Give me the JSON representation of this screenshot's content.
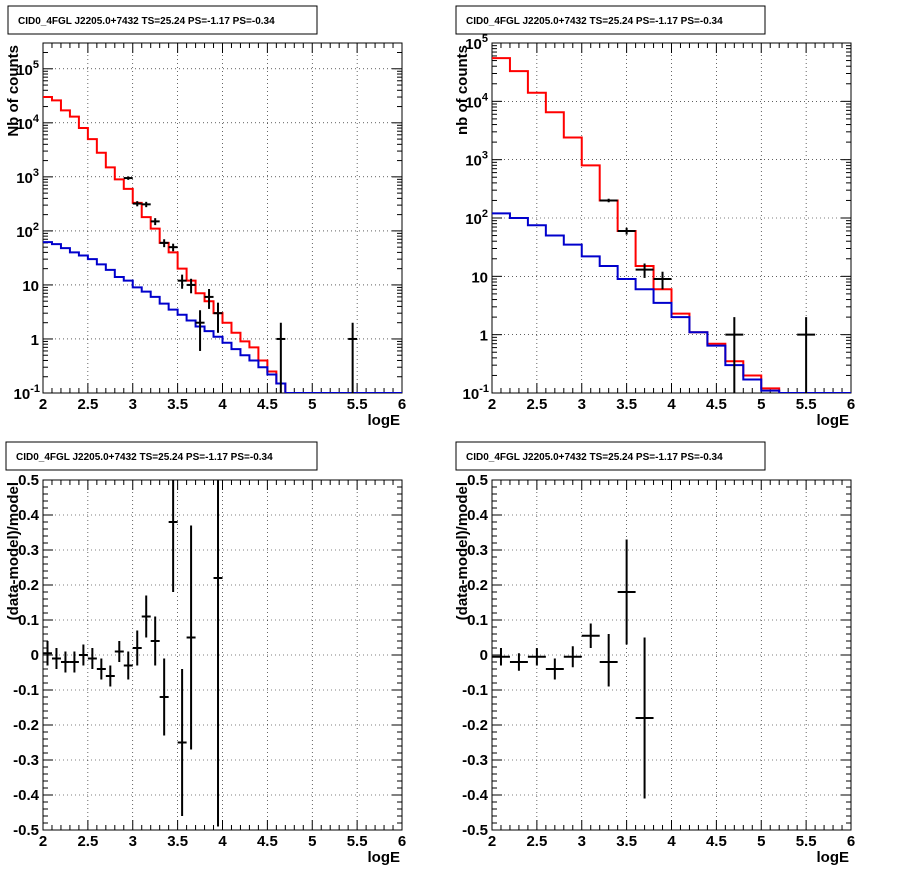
{
  "chart_data": [
    {
      "type": "line",
      "panel": "top-left",
      "title": "CID0_4FGL J2205.0+7432 TS=25.24 PS=-1.17 PS=-0.34",
      "xlabel": "logE",
      "ylabel": "Nb of counts",
      "xlim": [
        2,
        6
      ],
      "ylim": [
        0.1,
        300000
      ],
      "ylog": true,
      "grid": true,
      "xticks": [
        "2",
        "2.5",
        "3",
        "3.5",
        "4",
        "4.5",
        "5",
        "5.5",
        "6"
      ],
      "yticks": [
        {
          "value": 0.1,
          "label": "10",
          "exp": "-1"
        },
        {
          "value": 1,
          "label": "1",
          "exp": ""
        },
        {
          "value": 10,
          "label": "10",
          "exp": ""
        },
        {
          "value": 100,
          "label": "10",
          "exp": "2"
        },
        {
          "value": 1000,
          "label": "10",
          "exp": "3"
        },
        {
          "value": 10000,
          "label": "10",
          "exp": "4"
        },
        {
          "value": 100000,
          "label": "10",
          "exp": "5"
        }
      ],
      "bin_edges": [
        2.0,
        2.1,
        2.2,
        2.3,
        2.4,
        2.5,
        2.6,
        2.7,
        2.8,
        2.9,
        3.0,
        3.1,
        3.2,
        3.3,
        3.4,
        3.5,
        3.6,
        3.7,
        3.8,
        3.9,
        4.0,
        4.1,
        4.2,
        4.3,
        4.4,
        4.5,
        4.6,
        4.7,
        4.8,
        4.9,
        5.0,
        5.1,
        5.2,
        5.3,
        5.4,
        5.5,
        5.6,
        5.7,
        5.8,
        5.9,
        6.0
      ],
      "series": [
        {
          "name": "",
          "color": "#ff0000",
          "style": "step",
          "values": [
            30000,
            26000,
            17000,
            13000,
            8000,
            5000,
            2800,
            1500,
            900,
            600,
            330,
            180,
            110,
            60,
            40,
            20,
            12,
            7,
            5,
            3,
            2,
            1.3,
            0.9,
            0.7,
            0.4,
            0.25,
            0.15,
            0.1,
            0.1,
            0.1,
            0.1,
            0.1,
            0.1,
            0.1,
            0.1,
            0.1,
            0.1,
            0.1,
            0.1,
            0.1
          ]
        },
        {
          "name": "",
          "color": "#0000cc",
          "style": "step",
          "values": [
            62,
            57,
            48,
            40,
            35,
            30,
            24,
            19,
            14,
            12,
            9,
            7.5,
            6,
            4.5,
            3.5,
            2.8,
            2.2,
            1.7,
            1.4,
            1.1,
            0.85,
            0.65,
            0.5,
            0.4,
            0.3,
            0.22,
            0.15,
            0.1,
            0.1,
            0.1,
            0.1,
            0.1,
            0.1,
            0.1,
            0.1,
            0.1,
            0.1,
            0.1,
            0.1,
            0.1
          ]
        },
        {
          "name": "",
          "color": "#000000",
          "style": "errorbar",
          "points": [
            {
              "x": 2.95,
              "y": 950,
              "xerr": 0.05,
              "lo": 880,
              "hi": 1020
            },
            {
              "x": 3.05,
              "y": 320,
              "xerr": 0.05,
              "lo": 285,
              "hi": 355
            },
            {
              "x": 3.15,
              "y": 310,
              "xerr": 0.05,
              "lo": 275,
              "hi": 345
            },
            {
              "x": 3.25,
              "y": 150,
              "xerr": 0.05,
              "lo": 128,
              "hi": 172
            },
            {
              "x": 3.35,
              "y": 60,
              "xerr": 0.05,
              "lo": 50,
              "hi": 70
            },
            {
              "x": 3.45,
              "y": 50,
              "xerr": 0.05,
              "lo": 42,
              "hi": 58
            },
            {
              "x": 3.55,
              "y": 12,
              "xerr": 0.05,
              "lo": 8.5,
              "hi": 15.5
            },
            {
              "x": 3.65,
              "y": 10,
              "xerr": 0.05,
              "lo": 7,
              "hi": 13
            },
            {
              "x": 3.75,
              "y": 2,
              "xerr": 0.05,
              "lo": 0.6,
              "hi": 3.4
            },
            {
              "x": 3.85,
              "y": 6,
              "xerr": 0.05,
              "lo": 3.6,
              "hi": 8.4
            },
            {
              "x": 3.95,
              "y": 3,
              "xerr": 0.05,
              "lo": 1.3,
              "hi": 4.7
            },
            {
              "x": 4.65,
              "y": 1,
              "xerr": 0.05,
              "lo": 0.1,
              "hi": 2
            },
            {
              "x": 5.45,
              "y": 1,
              "xerr": 0.05,
              "lo": 0.1,
              "hi": 2
            }
          ]
        }
      ]
    },
    {
      "type": "line",
      "panel": "top-right",
      "title": "CID0_4FGL J2205.0+7432 TS=25.24 PS=-1.17 PS=-0.34",
      "xlabel": "logE",
      "ylabel": "nb of counts",
      "xlim": [
        2,
        6
      ],
      "ylim": [
        0.1,
        100000
      ],
      "ylog": true,
      "grid": true,
      "xticks": [
        "2",
        "2.5",
        "3",
        "3.5",
        "4",
        "4.5",
        "5",
        "5.5",
        "6"
      ],
      "yticks": [
        {
          "value": 0.1,
          "label": "10",
          "exp": "-1"
        },
        {
          "value": 1,
          "label": "1",
          "exp": ""
        },
        {
          "value": 10,
          "label": "10",
          "exp": ""
        },
        {
          "value": 100,
          "label": "10",
          "exp": "2"
        },
        {
          "value": 1000,
          "label": "10",
          "exp": "3"
        },
        {
          "value": 10000,
          "label": "10",
          "exp": "4"
        },
        {
          "value": 100000,
          "label": "10",
          "exp": "5"
        }
      ],
      "bin_edges": [
        2.0,
        2.2,
        2.4,
        2.6,
        2.8,
        3.0,
        3.2,
        3.4,
        3.6,
        3.8,
        4.0,
        4.2,
        4.4,
        4.6,
        4.8,
        5.0,
        5.2,
        5.4,
        5.6,
        5.8,
        6.0
      ],
      "series": [
        {
          "name": "",
          "color": "#ff0000",
          "style": "step",
          "values": [
            55000,
            33000,
            14000,
            6500,
            2400,
            800,
            200,
            60,
            15,
            6,
            2.3,
            1.1,
            0.7,
            0.35,
            0.2,
            0.12,
            0.1,
            0.1,
            0.1,
            0.1
          ]
        },
        {
          "name": "",
          "color": "#0000cc",
          "style": "step",
          "values": [
            120,
            100,
            75,
            50,
            35,
            22,
            15,
            9,
            6,
            3.5,
            2,
            1.1,
            0.65,
            0.3,
            0.17,
            0.11,
            0.1,
            0.1,
            0.1,
            0.1
          ]
        },
        {
          "name": "",
          "color": "#000000",
          "style": "errorbar",
          "points": [
            {
              "x": 3.3,
              "y": 200,
              "xerr": 0.1,
              "lo": 186,
              "hi": 214
            },
            {
              "x": 3.5,
              "y": 60,
              "xerr": 0.1,
              "lo": 52,
              "hi": 68
            },
            {
              "x": 3.7,
              "y": 13,
              "xerr": 0.1,
              "lo": 9.4,
              "hi": 16.6
            },
            {
              "x": 3.9,
              "y": 9,
              "xerr": 0.1,
              "lo": 6,
              "hi": 12
            },
            {
              "x": 4.7,
              "y": 1,
              "xerr": 0.1,
              "lo": 0.1,
              "hi": 2
            },
            {
              "x": 5.5,
              "y": 1,
              "xerr": 0.1,
              "lo": 0.1,
              "hi": 2
            }
          ]
        }
      ]
    },
    {
      "type": "scatter",
      "panel": "bottom-left",
      "title": "CID0_4FGL J2205.0+7432 TS=25.24 PS=-1.17 PS=-0.34",
      "xlabel": "logE",
      "ylabel": "(data-model)/model",
      "xlim": [
        2,
        6
      ],
      "ylim": [
        -0.5,
        0.5
      ],
      "ylog": false,
      "grid": true,
      "xticks": [
        "2",
        "2.5",
        "3",
        "3.5",
        "4",
        "4.5",
        "5",
        "5.5",
        "6"
      ],
      "yticks": [
        "-0.5",
        "-0.4",
        "-0.3",
        "-0.2",
        "-0.1",
        "0",
        "0.1",
        "0.2",
        "0.3",
        "0.4",
        "0.5"
      ],
      "series": [
        {
          "name": "",
          "color": "#000000",
          "style": "errorbar",
          "points": [
            {
              "x": 2.05,
              "y": 0.005,
              "xerr": 0.05,
              "lo": -0.03,
              "hi": 0.04
            },
            {
              "x": 2.15,
              "y": -0.01,
              "xerr": 0.05,
              "lo": -0.04,
              "hi": 0.02
            },
            {
              "x": 2.25,
              "y": -0.02,
              "xerr": 0.05,
              "lo": -0.05,
              "hi": 0.01
            },
            {
              "x": 2.35,
              "y": -0.02,
              "xerr": 0.05,
              "lo": -0.05,
              "hi": 0.01
            },
            {
              "x": 2.45,
              "y": 0.0,
              "xerr": 0.05,
              "lo": -0.03,
              "hi": 0.03
            },
            {
              "x": 2.55,
              "y": -0.01,
              "xerr": 0.05,
              "lo": -0.04,
              "hi": 0.02
            },
            {
              "x": 2.65,
              "y": -0.04,
              "xerr": 0.05,
              "lo": -0.07,
              "hi": -0.01
            },
            {
              "x": 2.75,
              "y": -0.06,
              "xerr": 0.05,
              "lo": -0.09,
              "hi": -0.03
            },
            {
              "x": 2.85,
              "y": 0.01,
              "xerr": 0.05,
              "lo": -0.02,
              "hi": 0.04
            },
            {
              "x": 2.95,
              "y": -0.03,
              "xerr": 0.05,
              "lo": -0.07,
              "hi": 0.01
            },
            {
              "x": 3.05,
              "y": 0.02,
              "xerr": 0.05,
              "lo": -0.03,
              "hi": 0.07
            },
            {
              "x": 3.15,
              "y": 0.11,
              "xerr": 0.05,
              "lo": 0.05,
              "hi": 0.17
            },
            {
              "x": 3.25,
              "y": 0.04,
              "xerr": 0.05,
              "lo": -0.03,
              "hi": 0.11
            },
            {
              "x": 3.35,
              "y": -0.12,
              "xerr": 0.05,
              "lo": -0.23,
              "hi": -0.01
            },
            {
              "x": 3.45,
              "y": 0.38,
              "xerr": 0.05,
              "lo": 0.18,
              "hi": 0.5
            },
            {
              "x": 3.55,
              "y": -0.25,
              "xerr": 0.05,
              "lo": -0.46,
              "hi": -0.04
            },
            {
              "x": 3.65,
              "y": 0.05,
              "xerr": 0.05,
              "lo": -0.27,
              "hi": 0.37
            },
            {
              "x": 3.95,
              "y": 0.22,
              "xerr": 0.05,
              "lo": -0.49,
              "hi": 0.5
            }
          ]
        }
      ]
    },
    {
      "type": "scatter",
      "panel": "bottom-right",
      "title": "CID0_4FGL J2205.0+7432 TS=25.24 PS=-1.17 PS=-0.34",
      "xlabel": "logE",
      "ylabel": "(data-model)/model",
      "xlim": [
        2,
        6
      ],
      "ylim": [
        -0.5,
        0.5
      ],
      "ylog": false,
      "grid": true,
      "xticks": [
        "2",
        "2.5",
        "3",
        "3.5",
        "4",
        "4.5",
        "5",
        "5.5",
        "6"
      ],
      "yticks": [
        "-0.5",
        "-0.4",
        "-0.3",
        "-0.2",
        "-0.1",
        "0",
        "0.1",
        "0.2",
        "0.3",
        "0.4",
        "0.5"
      ],
      "series": [
        {
          "name": "",
          "color": "#000000",
          "style": "errorbar",
          "points": [
            {
              "x": 2.1,
              "y": -0.005,
              "xerr": 0.1,
              "lo": -0.03,
              "hi": 0.02
            },
            {
              "x": 2.3,
              "y": -0.02,
              "xerr": 0.1,
              "lo": -0.045,
              "hi": 0.005
            },
            {
              "x": 2.5,
              "y": -0.005,
              "xerr": 0.1,
              "lo": -0.03,
              "hi": 0.02
            },
            {
              "x": 2.7,
              "y": -0.04,
              "xerr": 0.1,
              "lo": -0.07,
              "hi": -0.01
            },
            {
              "x": 2.9,
              "y": -0.005,
              "xerr": 0.1,
              "lo": -0.035,
              "hi": 0.025
            },
            {
              "x": 3.1,
              "y": 0.055,
              "xerr": 0.1,
              "lo": 0.02,
              "hi": 0.09
            },
            {
              "x": 3.3,
              "y": -0.02,
              "xerr": 0.1,
              "lo": -0.09,
              "hi": 0.06
            },
            {
              "x": 3.5,
              "y": 0.18,
              "xerr": 0.1,
              "lo": 0.03,
              "hi": 0.33
            },
            {
              "x": 3.7,
              "y": -0.18,
              "xerr": 0.1,
              "lo": -0.41,
              "hi": 0.05
            }
          ]
        }
      ]
    }
  ]
}
